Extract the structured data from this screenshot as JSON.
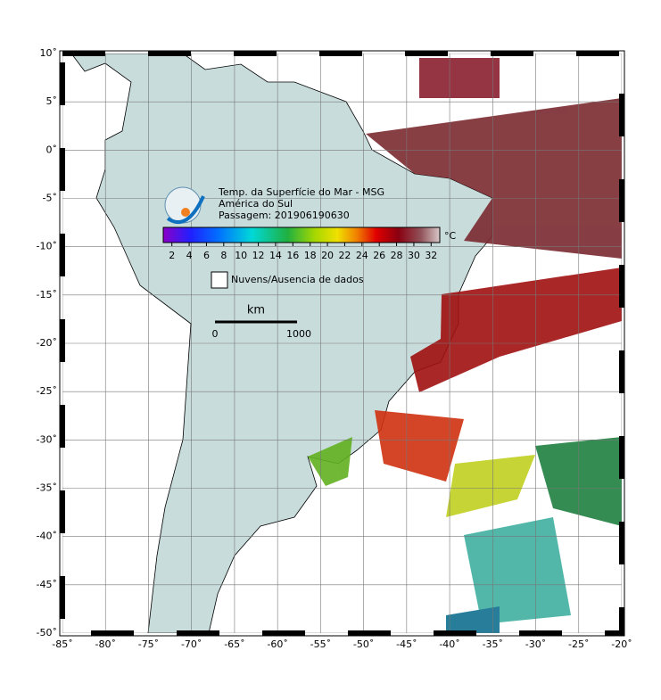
{
  "map": {
    "title": "Temp. da Superfície do Mar - MSG",
    "subtitle": "América do Sul",
    "pass": "Passagem: 201906190630",
    "xlim": [
      -85,
      -20
    ],
    "ylim": [
      -50,
      10
    ],
    "xticks": [
      {
        "value": -85,
        "label": "-85˚"
      },
      {
        "value": -80,
        "label": "-80˚"
      },
      {
        "value": -75,
        "label": "-75˚"
      },
      {
        "value": -70,
        "label": "-70˚"
      },
      {
        "value": -65,
        "label": "-65˚"
      },
      {
        "value": -60,
        "label": "-60˚"
      },
      {
        "value": -55,
        "label": "-55˚"
      },
      {
        "value": -50,
        "label": "-50˚"
      },
      {
        "value": -45,
        "label": "-45˚"
      },
      {
        "value": -40,
        "label": "-40˚"
      },
      {
        "value": -35,
        "label": "-35˚"
      },
      {
        "value": -30,
        "label": "-30˚"
      },
      {
        "value": -25,
        "label": "-25˚"
      },
      {
        "value": -20,
        "label": "-20˚"
      }
    ],
    "yticks": [
      {
        "value": 10,
        "label": "10˚"
      },
      {
        "value": 5,
        "label": "5˚"
      },
      {
        "value": 0,
        "label": "0˚"
      },
      {
        "value": -5,
        "label": "-5˚"
      },
      {
        "value": -10,
        "label": "-10˚"
      },
      {
        "value": -15,
        "label": "-15˚"
      },
      {
        "value": -20,
        "label": "-20˚"
      },
      {
        "value": -25,
        "label": "-25˚"
      },
      {
        "value": -30,
        "label": "-30˚"
      },
      {
        "value": -35,
        "label": "-35˚"
      },
      {
        "value": -40,
        "label": "-40˚"
      },
      {
        "value": -45,
        "label": "-45˚"
      },
      {
        "value": -50,
        "label": "-50˚"
      }
    ],
    "colorbar": {
      "unit": "°C",
      "range": [
        1,
        33
      ],
      "ticks": [
        2,
        4,
        6,
        8,
        10,
        12,
        14,
        16,
        18,
        20,
        22,
        24,
        26,
        28,
        30,
        32
      ]
    },
    "legend": "Nuvens/Ausencia de dados",
    "scale": {
      "unit": "km",
      "labels": [
        0,
        1000
      ]
    }
  }
}
